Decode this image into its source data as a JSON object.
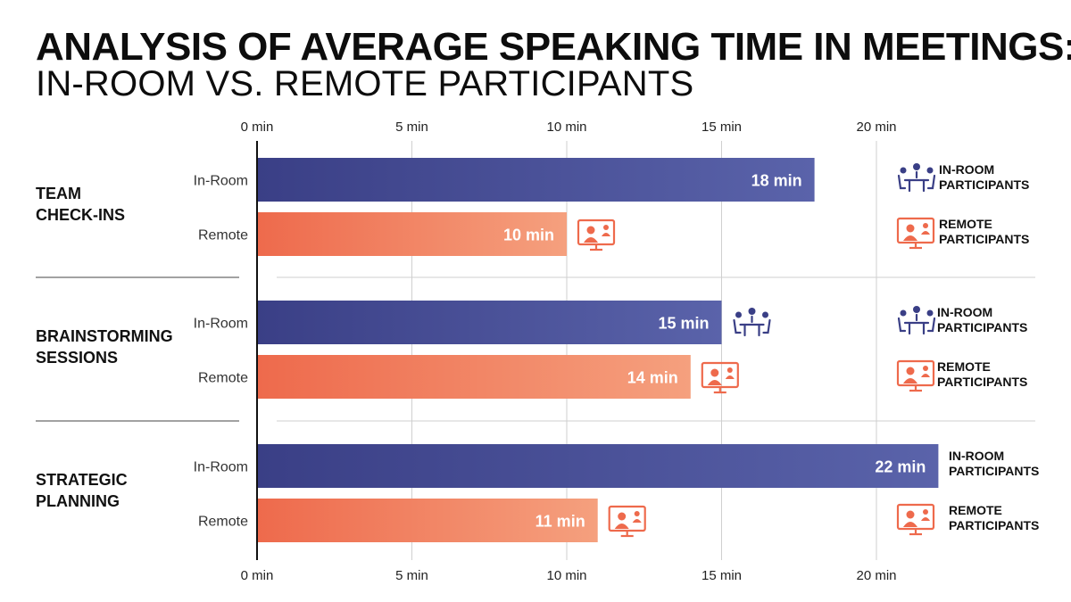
{
  "header": {
    "title": "ANALYSIS OF AVERAGE SPEAKING TIME IN MEETINGS:",
    "subtitle": "IN-ROOM VS. REMOTE PARTICIPANTS"
  },
  "colors": {
    "in_room": "#3a3f86",
    "in_room_light": "#5a63aa",
    "remote": "#ee6a4c",
    "remote_light": "#f5a07e",
    "grid": "#cfcfcf",
    "axis": "#111111"
  },
  "icons": {
    "in_room": "meeting-table-icon",
    "remote": "video-call-icon"
  },
  "chart_data": {
    "type": "bar",
    "orientation": "horizontal",
    "title": "ANALYSIS OF AVERAGE SPEAKING TIME IN MEETINGS:",
    "subtitle": "IN-ROOM VS. REMOTE PARTICIPANTS",
    "xlim": [
      0,
      22
    ],
    "x_ticks": [
      0,
      5,
      10,
      15,
      20
    ],
    "tick_suffix": " min",
    "tick_position": "top and bottom",
    "grid": true,
    "categories": [
      {
        "label_lines": [
          "TEAM",
          "CHECK-INS"
        ]
      },
      {
        "label_lines": [
          "BRAINSTORMING",
          "SESSIONS"
        ]
      },
      {
        "label_lines": [
          "STRATEGIC",
          "PLANNING"
        ]
      }
    ],
    "series": [
      {
        "key": "in_room",
        "label": "In-Room",
        "values": [
          18,
          15,
          22
        ],
        "value_labels": [
          "18 min",
          "15 min",
          "22 min"
        ]
      },
      {
        "key": "remote",
        "label": "Remote",
        "values": [
          10,
          14,
          11
        ],
        "value_labels": [
          "10 min",
          "14 min",
          "11 min"
        ]
      }
    ],
    "legend": {
      "placement": "right of each group",
      "in_room_lines": [
        "IN-ROOM",
        "PARTICIPANTS"
      ],
      "remote_lines": [
        "REMOTE",
        "PARTICIPANTS"
      ]
    }
  }
}
